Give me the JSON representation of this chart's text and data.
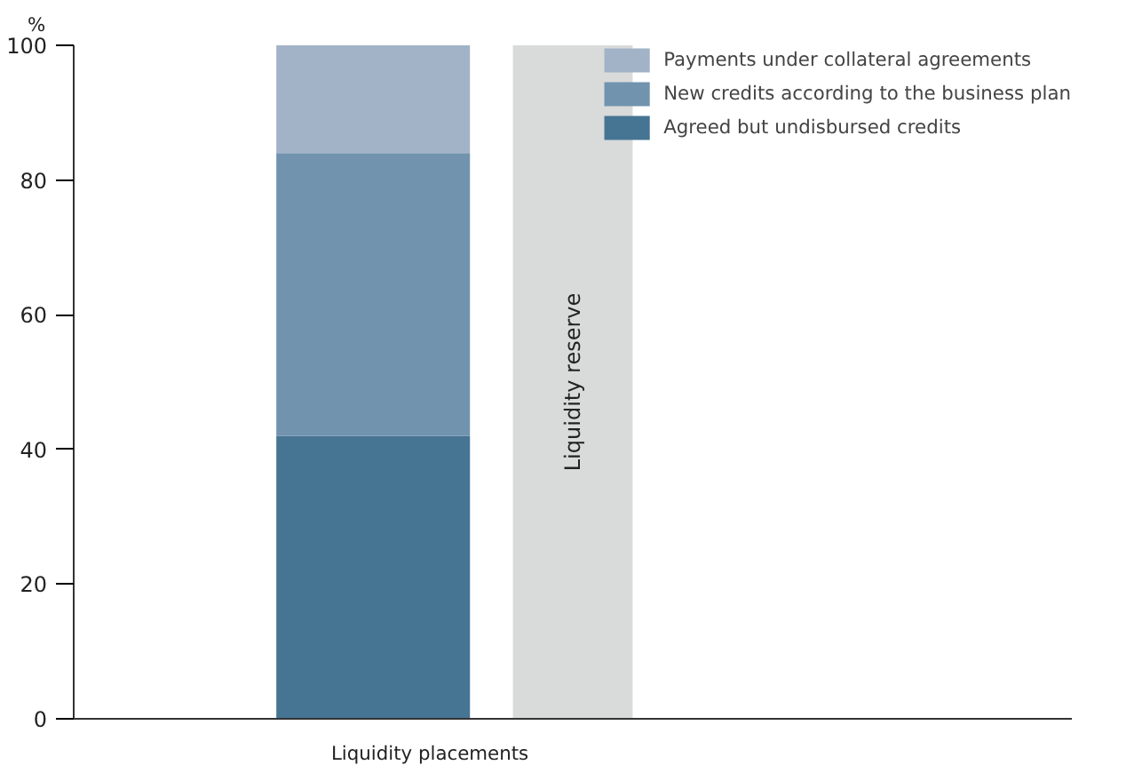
{
  "chart_data": {
    "type": "bar",
    "stacked": true,
    "ylabel": "%",
    "xlabel": "Liquidity placements",
    "categories": [
      null,
      null,
      null,
      null,
      null
    ],
    "series": [
      {
        "name": "Agreed but undisbursed credits",
        "color": "#467493",
        "values": [
          null,
          42,
          null,
          null,
          null
        ]
      },
      {
        "name": "New credits according to the business plan",
        "color": "#7193ae",
        "values": [
          null,
          42,
          null,
          null,
          null
        ]
      },
      {
        "name": "Payments under collateral agreements",
        "color": "#a2b3c8",
        "values": [
          null,
          16,
          null,
          null,
          null
        ]
      },
      {
        "name": "Liquidity reserve",
        "color": "#d9dada",
        "values": [
          null,
          null,
          100,
          null,
          null
        ]
      }
    ],
    "ylim": [
      0,
      100
    ],
    "yticks": [
      0,
      20,
      40,
      60,
      80,
      100
    ],
    "grid": false,
    "legend": "top right",
    "tick_labels": "y"
  }
}
